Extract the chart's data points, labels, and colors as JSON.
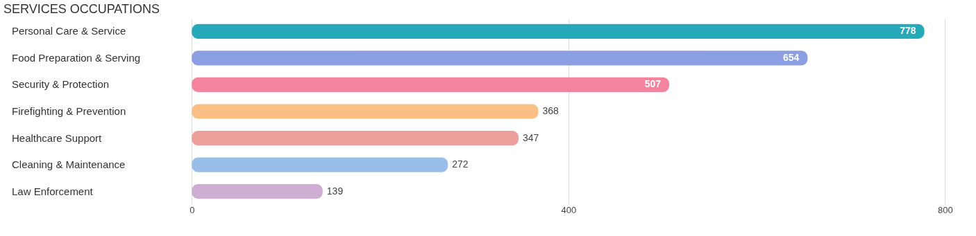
{
  "chart_data": {
    "type": "bar",
    "orientation": "horizontal",
    "title": "SERVICES OCCUPATIONS",
    "categories": [
      "Personal Care & Service",
      "Food Preparation & Serving",
      "Security & Protection",
      "Firefighting & Prevention",
      "Healthcare Support",
      "Cleaning & Maintenance",
      "Law Enforcement"
    ],
    "values": [
      778,
      654,
      507,
      368,
      347,
      272,
      139
    ],
    "colors": [
      "#26a9b9",
      "#8c9fe3",
      "#f4839e",
      "#f9bf85",
      "#eda09b",
      "#99bfe8",
      "#cfaed3"
    ],
    "xlim": [
      -200,
      810
    ],
    "xticks": [
      0,
      400,
      800
    ],
    "grid": "x",
    "data_labels": true
  }
}
